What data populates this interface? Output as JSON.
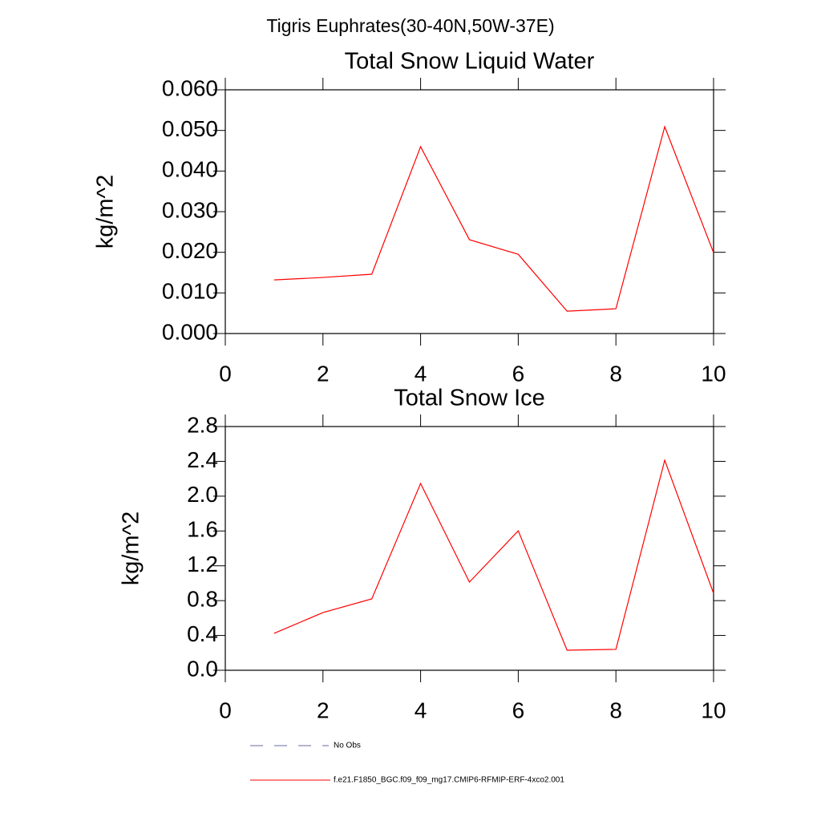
{
  "header": {
    "title": "Tigris Euphrates(30-40N,50W-37E)"
  },
  "legend_extra": {
    "name": "No Obs",
    "color": "#6a6aa0",
    "dash": true
  },
  "chart_data": [
    {
      "type": "line",
      "title": "Total Snow Liquid Water",
      "y_label": "kg/m^2",
      "x": [
        1,
        2,
        3,
        4,
        5,
        6,
        7,
        8,
        9,
        10
      ],
      "series": [
        {
          "name": "f.e21.F1850_BGC.f09_f09_mg17.CMIP6-RFMIP-ERF-4xco2.001",
          "color": "#ff0000",
          "values": [
            0.0132,
            0.0138,
            0.0146,
            0.046,
            0.0231,
            0.0195,
            0.0055,
            0.0061,
            0.0509,
            0.0199
          ]
        }
      ],
      "xlim": [
        0,
        10
      ],
      "xticks": [
        0,
        2,
        4,
        6,
        8,
        10
      ],
      "ylim": [
        0,
        0.06
      ],
      "yticks": [
        {
          "value": 0,
          "label": "0.000"
        },
        {
          "value": 0.01,
          "label": "0.010"
        },
        {
          "value": 0.02,
          "label": "0.020"
        },
        {
          "value": 0.03,
          "label": "0.030"
        },
        {
          "value": 0.04,
          "label": "0.040"
        },
        {
          "value": 0.05,
          "label": "0.050"
        },
        {
          "value": 0.06,
          "label": "0.060"
        }
      ]
    },
    {
      "type": "line",
      "title": "Total Snow Ice",
      "y_label": "kg/m^2",
      "x": [
        1,
        2,
        3,
        4,
        5,
        6,
        7,
        8,
        9,
        10
      ],
      "series": [
        {
          "name": "f.e21.F1850_BGC.f09_f09_mg17.CMIP6-RFMIP-ERF-4xco2.001",
          "color": "#ff0000",
          "values": [
            0.424,
            0.663,
            0.82,
            2.146,
            1.013,
            1.602,
            0.23,
            0.24,
            2.413,
            0.884
          ]
        }
      ],
      "xlim": [
        0,
        10
      ],
      "xticks": [
        0,
        2,
        4,
        6,
        8,
        10
      ],
      "ylim": [
        0,
        2.8
      ],
      "yticks": [
        {
          "value": 0,
          "label": "0.0"
        },
        {
          "value": 0.4,
          "label": "0.4"
        },
        {
          "value": 0.8,
          "label": "0.8"
        },
        {
          "value": 1.2,
          "label": "1.2"
        },
        {
          "value": 1.6,
          "label": "1.6"
        },
        {
          "value": 2.0,
          "label": "2.0"
        },
        {
          "value": 2.4,
          "label": "2.4"
        },
        {
          "value": 2.8,
          "label": "2.8"
        }
      ]
    }
  ]
}
